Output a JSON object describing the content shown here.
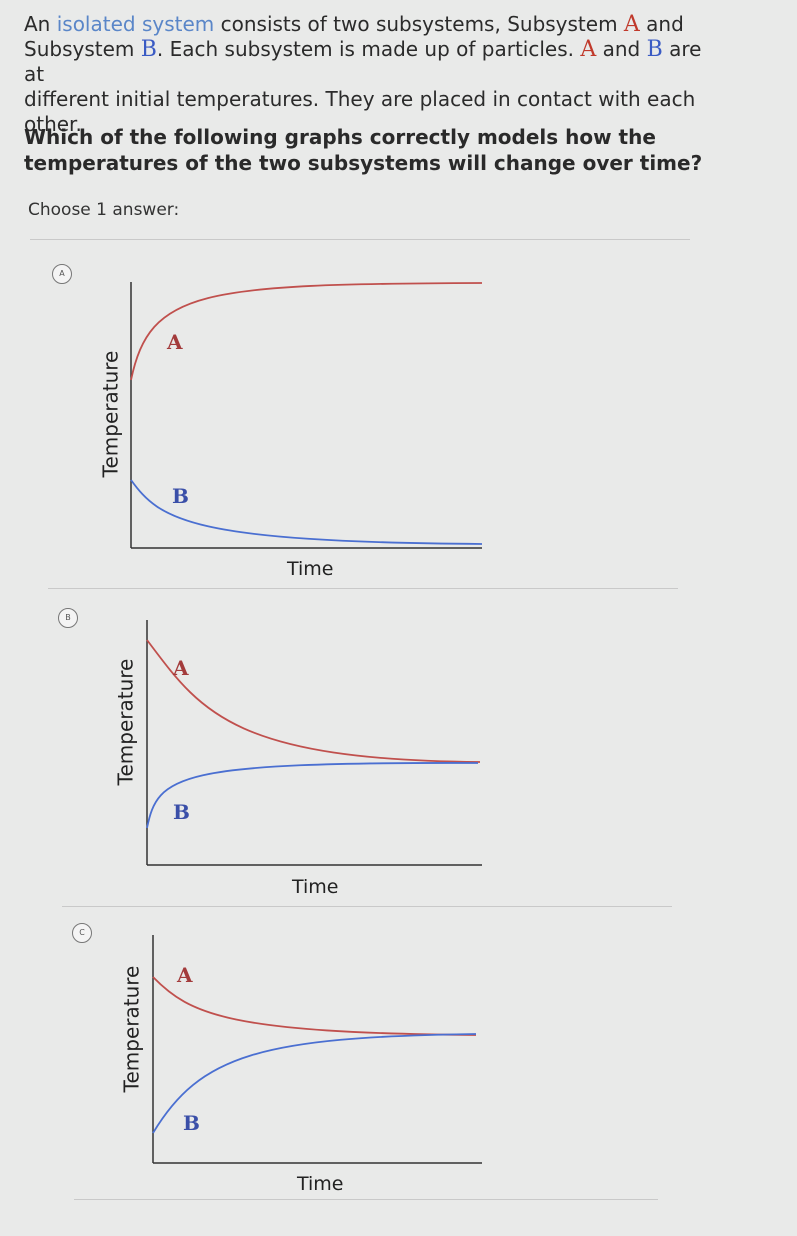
{
  "question": {
    "intro_1": "An",
    "link_text": "isolated system",
    "intro_2": "consists of two subsystems, Subsystem",
    "sysA": "A",
    "intro_3": "and",
    "intro_4": "Subsystem",
    "sysB": "B",
    "intro_5": ". Each subsystem is made up of particles.",
    "intro_6": "and",
    "intro_7": "are at",
    "intro_8": "different initial temperatures. They are placed in contact with each other.",
    "prompt": "Which of the following graphs correctly models how the temperatures of the two subsystems will change over time?",
    "instruction": "Choose 1 answer:"
  },
  "options": [
    {
      "letter": "A",
      "ylabel": "Temperature",
      "xlabel": "Time",
      "label_a": "A",
      "label_b": "B"
    },
    {
      "letter": "B",
      "ylabel": "Temperature",
      "xlabel": "Time",
      "label_a": "A",
      "label_b": "B"
    },
    {
      "letter": "C",
      "ylabel": "Temperature",
      "xlabel": "Time",
      "label_a": "A",
      "label_b": "B"
    }
  ],
  "colors": {
    "curve_a": "#c0504d",
    "curve_b": "#4a6fd1",
    "axis": "#333333"
  }
}
